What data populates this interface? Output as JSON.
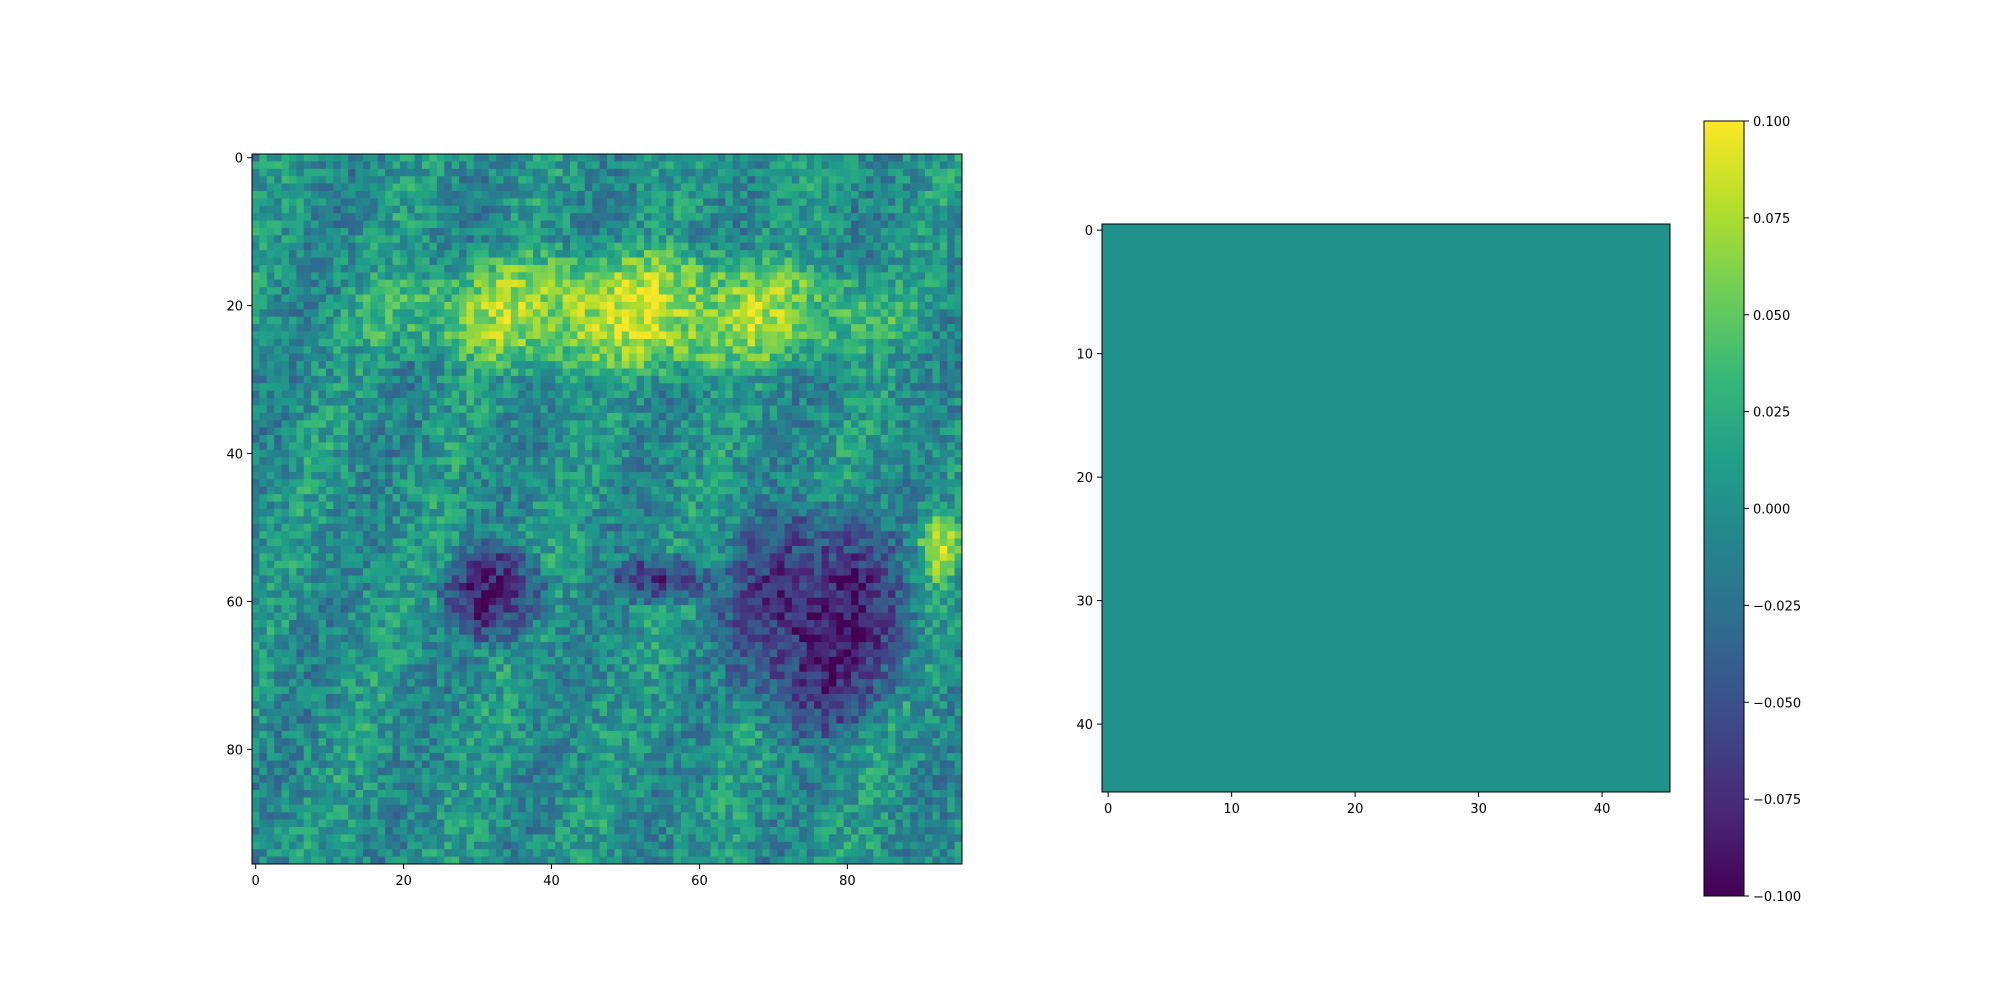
{
  "chart_data": [
    {
      "type": "heatmap",
      "title": "",
      "xlabel": "",
      "ylabel": "",
      "grid": false,
      "colormap": "viridis",
      "description_of_content": "",
      "shape": [
        96,
        96
      ],
      "xlim": [
        -0.5,
        95.5
      ],
      "ylim": [
        95.5,
        -0.5
      ],
      "xticks": [
        0,
        20,
        40,
        60,
        80
      ],
      "yticks": [
        0,
        20,
        40,
        60,
        80
      ],
      "value_range": [
        -0.1,
        0.1
      ],
      "dominant_value": 0.0,
      "regions": [
        {
          "label": "bright upper outline",
          "value": 0.07,
          "x": [
            10,
            92
          ],
          "y": [
            12,
            30
          ]
        },
        {
          "label": "dark lower shadow",
          "value": -0.08,
          "x": [
            62,
            90
          ],
          "y": [
            45,
            80
          ]
        },
        {
          "label": "dark patch left",
          "value": -0.07,
          "x": [
            25,
            40
          ],
          "y": [
            52,
            66
          ]
        },
        {
          "label": "dark patch middle",
          "value": -0.07,
          "x": [
            48,
            62
          ],
          "y": [
            54,
            60
          ]
        },
        {
          "label": "bright edge spot",
          "value": 0.06,
          "x": [
            90,
            95
          ],
          "y": [
            47,
            58
          ]
        }
      ]
    },
    {
      "type": "heatmap",
      "title": "",
      "xlabel": "",
      "ylabel": "",
      "grid": false,
      "colormap": "viridis",
      "shape": [
        46,
        46
      ],
      "xlim": [
        -0.5,
        45.5
      ],
      "ylim": [
        45.5,
        -0.5
      ],
      "xticks": [
        0,
        10,
        20,
        30,
        40
      ],
      "yticks": [
        0,
        10,
        20,
        30,
        40
      ],
      "uniform_value": 0.0,
      "fill_color": "#21918c"
    }
  ],
  "colorbar": {
    "vmin": -0.1,
    "vmax": 0.1,
    "ticks": [
      0.1,
      0.075,
      0.05,
      0.025,
      0.0,
      -0.025,
      -0.05,
      -0.075,
      -0.1
    ],
    "tick_labels": [
      "0.100",
      "0.075",
      "0.050",
      "0.025",
      "0.000",
      "−0.025",
      "−0.050",
      "−0.075",
      "−0.100"
    ]
  },
  "colors": {
    "viridis_stops": [
      "#440154",
      "#482878",
      "#3e4989",
      "#31688e",
      "#26828e",
      "#1f9e89",
      "#35b779",
      "#6ece58",
      "#b5de2b",
      "#fde725"
    ]
  }
}
